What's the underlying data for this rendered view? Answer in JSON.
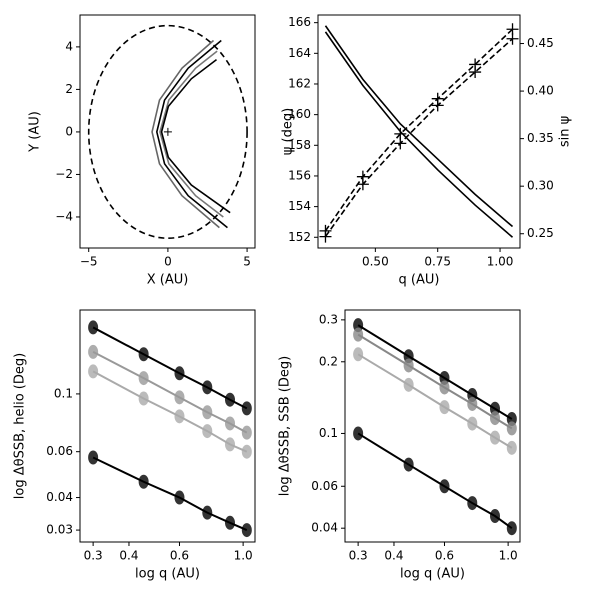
{
  "chart_data": [
    {
      "type": "line",
      "xlabel": "X (AU)",
      "ylabel": "Y (AU)",
      "xlim": [
        -5.55,
        5.5
      ],
      "ylim": [
        -5.46,
        5.5
      ],
      "xticks": [
        {
          "value": -5,
          "label": "−5"
        },
        0,
        5
      ],
      "yticks": [
        {
          "value": -4,
          "label": "−4"
        },
        {
          "value": -2,
          "label": "−2"
        },
        0,
        2,
        4
      ],
      "circle_radius": 5,
      "points": {
        "x": [
          0
        ],
        "values": [
          0
        ]
      },
      "series": [
        {
          "color": "#666666",
          "x": [
            3.25,
            0.89,
            -0.53,
            -1.0,
            -0.53,
            0.89,
            2.88
          ],
          "values": [
            -4.5,
            -3,
            -1.5,
            0,
            1.5,
            3,
            4.3
          ]
        },
        {
          "color": "#000000",
          "x": [
            3.76,
            1.28,
            -0.21,
            -0.7,
            -0.21,
            1.28,
            3.37
          ],
          "values": [
            -4.5,
            -3,
            -1.5,
            0,
            1.5,
            3,
            4.3
          ]
        },
        {
          "color": "#777777",
          "x": [
            3.5,
            1.75,
            0.06,
            -0.5,
            0.06,
            1.75,
            3.11
          ],
          "values": [
            -4,
            -3,
            -1.5,
            0,
            1.5,
            3,
            3.8
          ]
        },
        {
          "color": "#000000",
          "x": [
            3.93,
            1.48,
            0.03,
            -0.4,
            0.03,
            1.48,
            3.07
          ],
          "values": [
            -3.8,
            -2.5,
            -1.2,
            0,
            1.2,
            2.5,
            3.4
          ]
        }
      ]
    },
    {
      "type": "line",
      "xlabel": "q (AU)",
      "ylabel": "ψ (deg)",
      "y2label": "sin ψ",
      "x": [
        0.3,
        0.45,
        0.6,
        0.75,
        0.9,
        1.05
      ],
      "xlim": [
        0.27,
        1.08
      ],
      "ylim": [
        151.3,
        166.5
      ],
      "y2lim": [
        0.235,
        0.48
      ],
      "xticks": [
        {
          "value": 0.5,
          "label": "0.50"
        },
        0.75,
        {
          "value": 1.0,
          "label": "1.00"
        }
      ],
      "yticks": [
        152,
        154,
        156,
        158,
        160,
        162,
        164,
        166
      ],
      "y2ticks": [
        0.25,
        {
          "value": 0.3,
          "label": "0.30"
        },
        0.35,
        {
          "value": 0.4,
          "label": "0.40"
        },
        0.45
      ],
      "series": [
        {
          "color": "#000000",
          "values": [
            165.8,
            162.3,
            159.4,
            157.1,
            154.8,
            152.7
          ]
        },
        {
          "color": "#000000",
          "values": [
            165.4,
            161.9,
            158.9,
            156.4,
            154.1,
            152.0
          ]
        },
        {
          "color": "#000000",
          "axis": "y2",
          "dash": true,
          "marker": "+",
          "values": [
            0.253,
            0.31,
            0.355,
            0.392,
            0.428,
            0.465
          ]
        },
        {
          "color": "#000000",
          "axis": "y2",
          "dash": true,
          "marker": "+",
          "values": [
            0.247,
            0.302,
            0.345,
            0.385,
            0.42,
            0.455
          ]
        }
      ]
    },
    {
      "type": "line",
      "log": true,
      "xlabel": "log q (AU)",
      "ylabel": "log ΔθSSB, helio (Deg)",
      "x": [
        0.3,
        0.45,
        0.6,
        0.75,
        0.9,
        1.03
      ],
      "xlim": [
        0.27,
        1.1
      ],
      "ylim": [
        0.027,
        0.21
      ],
      "xticks": [
        0.3,
        0.4,
        0.6,
        {
          "value": 1.0,
          "label": "1.0"
        }
      ],
      "yticks": [
        0.03,
        0.04,
        0.06,
        0.1
      ],
      "series": [
        {
          "color": "#000000",
          "marker": "o",
          "values": [
            0.18,
            0.142,
            0.12,
            0.106,
            0.095,
            0.088
          ]
        },
        {
          "color": "#999999",
          "marker": "o",
          "values": [
            0.145,
            0.115,
            0.097,
            0.085,
            0.077,
            0.071
          ]
        },
        {
          "color": "#aaaaaa",
          "marker": "o",
          "values": [
            0.122,
            0.096,
            0.082,
            0.072,
            0.064,
            0.06
          ]
        },
        {
          "color": "#000000",
          "marker": "o",
          "values": [
            0.057,
            0.046,
            0.04,
            0.035,
            0.032,
            0.03
          ]
        }
      ]
    },
    {
      "type": "line",
      "log": true,
      "xlabel": "log q (AU)",
      "ylabel": "log ΔθSSB, SSB (Deg)",
      "x": [
        0.3,
        0.45,
        0.6,
        0.75,
        0.9,
        1.03
      ],
      "xlim": [
        0.27,
        1.1
      ],
      "ylim": [
        0.035,
        0.33
      ],
      "xticks": [
        0.3,
        0.4,
        0.6,
        {
          "value": 1.0,
          "label": "1.0"
        }
      ],
      "yticks": [
        0.04,
        0.06,
        0.1,
        0.2,
        0.3
      ],
      "series": [
        {
          "color": "#000000",
          "marker": "o",
          "values": [
            0.285,
            0.211,
            0.171,
            0.145,
            0.127,
            0.115
          ]
        },
        {
          "color": "#888888",
          "marker": "o",
          "values": [
            0.26,
            0.193,
            0.156,
            0.133,
            0.116,
            0.105
          ]
        },
        {
          "color": "#aaaaaa",
          "marker": "o",
          "values": [
            0.215,
            0.16,
            0.129,
            0.11,
            0.096,
            0.087
          ]
        },
        {
          "color": "#000000",
          "marker": "o",
          "values": [
            0.1,
            0.074,
            0.06,
            0.051,
            0.045,
            0.04
          ]
        }
      ]
    }
  ]
}
